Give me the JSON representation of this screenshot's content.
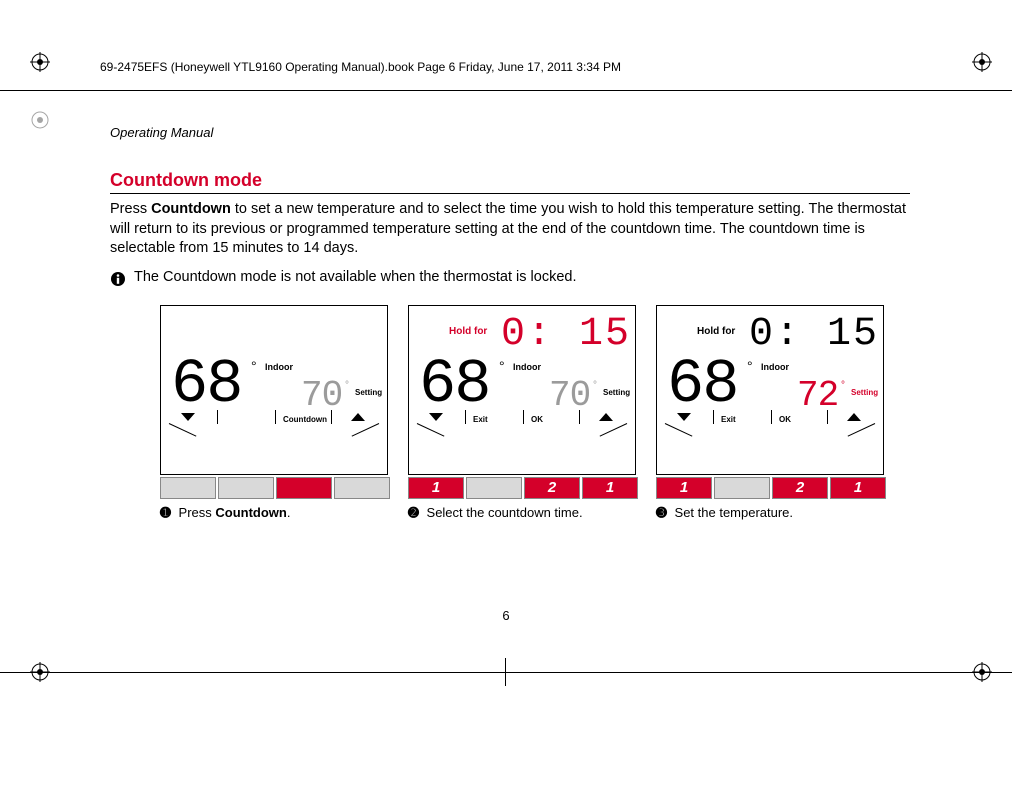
{
  "header": "69-2475EFS (Honeywell YTL9160 Operating Manual).book  Page 6  Friday, June 17, 2011  3:34 PM",
  "running_head": "Operating Manual",
  "section_title": "Countdown mode",
  "body_pre": "Press ",
  "body_bold": "Countdown",
  "body_post": " to set a new temperature and to select the time you wish to hold this temperature setting. The thermostat will return to its previous or programmed temperature setting at the end of the countdown time. The countdown time is selectable from 15 minutes to 14 days.",
  "note_text": "The Countdown mode is not available when the thermostat is locked.",
  "page_number": "6",
  "panels": [
    {
      "show_holdfor": false,
      "holdfor": "Hold for",
      "holdfor_red": false,
      "time": "",
      "time_red": false,
      "main_temp": "68",
      "indoor": "Indoor",
      "set_temp": "70",
      "set_red": false,
      "setting_label": "Setting",
      "setting_red": false,
      "sk_mid1": "",
      "sk_mid2": "Countdown",
      "buttons": [
        {
          "color": "grey",
          "label": ""
        },
        {
          "color": "grey",
          "label": ""
        },
        {
          "color": "red",
          "label": ""
        },
        {
          "color": "grey",
          "label": ""
        }
      ],
      "step_num": "➊",
      "step_pre": " Press ",
      "step_bold": "Countdown",
      "step_post": "."
    },
    {
      "show_holdfor": true,
      "holdfor": "Hold for",
      "holdfor_red": true,
      "time": "0: 15",
      "time_red": true,
      "main_temp": "68",
      "indoor": "Indoor",
      "set_temp": "70",
      "set_red": false,
      "setting_label": "Setting",
      "setting_red": false,
      "sk_mid1": "Exit",
      "sk_mid2": "OK",
      "buttons": [
        {
          "color": "red",
          "label": "1"
        },
        {
          "color": "grey",
          "label": ""
        },
        {
          "color": "red",
          "label": "2"
        },
        {
          "color": "red",
          "label": "1"
        }
      ],
      "step_num": "➋",
      "step_pre": "  Select the countdown time.",
      "step_bold": "",
      "step_post": ""
    },
    {
      "show_holdfor": true,
      "holdfor": "Hold for",
      "holdfor_red": false,
      "time": "0: 15",
      "time_red": false,
      "main_temp": "68",
      "indoor": "Indoor",
      "set_temp": "72",
      "set_red": true,
      "setting_label": "Setting",
      "setting_red": true,
      "sk_mid1": "Exit",
      "sk_mid2": "OK",
      "buttons": [
        {
          "color": "red",
          "label": "1"
        },
        {
          "color": "grey",
          "label": ""
        },
        {
          "color": "red",
          "label": "2"
        },
        {
          "color": "red",
          "label": "1"
        }
      ],
      "step_num": "➌",
      "step_pre": "  Set the temperature.",
      "step_bold": "",
      "step_post": ""
    }
  ]
}
